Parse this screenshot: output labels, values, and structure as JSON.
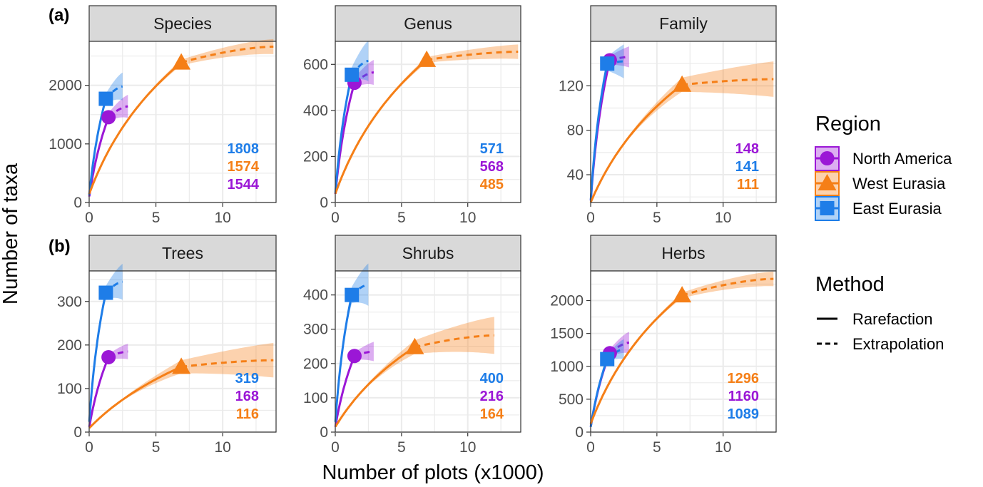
{
  "colors": {
    "north_america": "#9B17D6",
    "west_eurasia": "#F57F17",
    "east_eurasia": "#1E7DE8",
    "strip_bg": "#d9d9d9",
    "grid": "#ebebeb",
    "tick": "#4d4d4d"
  },
  "axes": {
    "x_title": "Number of plots (x1000)",
    "y_title": "Number of taxa"
  },
  "rows": [
    {
      "tag": "(a)"
    },
    {
      "tag": "(b)"
    }
  ],
  "legend": {
    "region_title": "Region",
    "regions": [
      {
        "key": "north_america",
        "label": "North America",
        "marker": "circle"
      },
      {
        "key": "west_eurasia",
        "label": "West Eurasia",
        "marker": "triangle"
      },
      {
        "key": "east_eurasia",
        "label": "East Eurasia",
        "marker": "square"
      }
    ],
    "method_title": "Method",
    "methods": [
      {
        "key": "rarefaction",
        "label": "Rarefaction",
        "line": "solid"
      },
      {
        "key": "extrapolation",
        "label": "Extrapolation",
        "line": "dashed"
      }
    ]
  },
  "chart_data": [
    {
      "type": "line",
      "title": "Species",
      "xlabel": "Number of plots (x1000)",
      "ylabel": "Number of taxa",
      "xlim": [
        0,
        14
      ],
      "ylim": [
        0,
        2750
      ],
      "xticks": [
        0,
        5,
        10
      ],
      "yticks": [
        0,
        1000,
        2000
      ],
      "series": [
        {
          "region": "north_america",
          "observed": [
            1.45,
            1455
          ],
          "end": [
            2.9,
            1640
          ],
          "ci": 0.05
        },
        {
          "region": "west_eurasia",
          "observed": [
            6.9,
            2390
          ],
          "end": [
            13.8,
            2660
          ],
          "ci": 0.02
        },
        {
          "region": "east_eurasia",
          "observed": [
            1.25,
            1770
          ],
          "end": [
            2.5,
            1980
          ],
          "ci": 0.05
        }
      ],
      "counts": [
        {
          "value": "1808",
          "region": "east_eurasia"
        },
        {
          "value": "1574",
          "region": "west_eurasia"
        },
        {
          "value": "1544",
          "region": "north_america"
        }
      ]
    },
    {
      "type": "line",
      "title": "Genus",
      "xlabel": "Number of plots (x1000)",
      "ylabel": "Number of taxa",
      "xlim": [
        0,
        14
      ],
      "ylim": [
        0,
        700
      ],
      "xticks": [
        0,
        5,
        10
      ],
      "yticks": [
        0,
        200,
        400,
        600
      ],
      "series": [
        {
          "region": "north_america",
          "observed": [
            1.45,
            520
          ],
          "end": [
            2.9,
            565
          ],
          "ci": 0.04
        },
        {
          "region": "west_eurasia",
          "observed": [
            6.9,
            620
          ],
          "end": [
            13.8,
            655
          ],
          "ci": 0.02
        },
        {
          "region": "east_eurasia",
          "observed": [
            1.25,
            555
          ],
          "end": [
            2.5,
            615
          ],
          "ci": 0.06
        }
      ],
      "counts": [
        {
          "value": "571",
          "region": "east_eurasia"
        },
        {
          "value": "568",
          "region": "north_america"
        },
        {
          "value": "485",
          "region": "west_eurasia"
        }
      ]
    },
    {
      "type": "line",
      "title": "Family",
      "xlabel": "Number of plots (x1000)",
      "ylabel": "Number of taxa",
      "xlim": [
        0,
        14
      ],
      "ylim": [
        15,
        160
      ],
      "xticks": [
        0,
        5,
        10
      ],
      "yticks": [
        40,
        80,
        120
      ],
      "series": [
        {
          "region": "north_america",
          "observed": [
            1.45,
            143
          ],
          "end": [
            2.9,
            146
          ],
          "ci": 0.03
        },
        {
          "region": "west_eurasia",
          "observed": [
            6.9,
            121
          ],
          "end": [
            13.8,
            126
          ],
          "ci": 0.06
        },
        {
          "region": "east_eurasia",
          "observed": [
            1.25,
            140
          ],
          "end": [
            2.5,
            142
          ],
          "ci": 0.05
        }
      ],
      "counts": [
        {
          "value": "148",
          "region": "north_america"
        },
        {
          "value": "141",
          "region": "east_eurasia"
        },
        {
          "value": "111",
          "region": "west_eurasia"
        }
      ]
    },
    {
      "type": "line",
      "title": "Trees",
      "xlabel": "Number of plots (x1000)",
      "ylabel": "Number of taxa",
      "xlim": [
        0,
        14
      ],
      "ylim": [
        0,
        370
      ],
      "xticks": [
        0,
        5,
        10
      ],
      "yticks": [
        0,
        100,
        200,
        300
      ],
      "series": [
        {
          "region": "north_america",
          "observed": [
            1.45,
            172
          ],
          "end": [
            2.9,
            185
          ],
          "ci": 0.04
        },
        {
          "region": "west_eurasia",
          "observed": [
            6.9,
            150
          ],
          "end": [
            13.8,
            165
          ],
          "ci": 0.1
        },
        {
          "region": "east_eurasia",
          "observed": [
            1.25,
            320
          ],
          "end": [
            2.5,
            345
          ],
          "ci": 0.05
        }
      ],
      "counts": [
        {
          "value": "319",
          "region": "east_eurasia"
        },
        {
          "value": "168",
          "region": "north_america"
        },
        {
          "value": "116",
          "region": "west_eurasia"
        }
      ]
    },
    {
      "type": "line",
      "title": "Shrubs",
      "xlabel": "Number of plots (x1000)",
      "ylabel": "Number of taxa",
      "xlim": [
        0,
        14
      ],
      "ylim": [
        0,
        470
      ],
      "xticks": [
        0,
        5,
        10
      ],
      "yticks": [
        0,
        100,
        200,
        300,
        400
      ],
      "series": [
        {
          "region": "north_america",
          "observed": [
            1.45,
            222
          ],
          "end": [
            2.9,
            235
          ],
          "ci": 0.05
        },
        {
          "region": "west_eurasia",
          "observed": [
            6.0,
            248
          ],
          "end": [
            12.0,
            282
          ],
          "ci": 0.08
        },
        {
          "region": "east_eurasia",
          "observed": [
            1.25,
            400
          ],
          "end": [
            2.5,
            430
          ],
          "ci": 0.06
        }
      ],
      "counts": [
        {
          "value": "400",
          "region": "east_eurasia"
        },
        {
          "value": "216",
          "region": "north_america"
        },
        {
          "value": "164",
          "region": "west_eurasia"
        }
      ]
    },
    {
      "type": "line",
      "title": "Herbs",
      "xlabel": "Number of plots (x1000)",
      "ylabel": "Number of taxa",
      "xlim": [
        0,
        14
      ],
      "ylim": [
        0,
        2450
      ],
      "xticks": [
        0,
        5,
        10
      ],
      "yticks": [
        0,
        500,
        1000,
        1500,
        2000
      ],
      "series": [
        {
          "region": "north_america",
          "observed": [
            1.45,
            1200
          ],
          "end": [
            2.9,
            1360
          ],
          "ci": 0.05
        },
        {
          "region": "west_eurasia",
          "observed": [
            6.9,
            2080
          ],
          "end": [
            13.8,
            2330
          ],
          "ci": 0.02
        },
        {
          "region": "east_eurasia",
          "observed": [
            1.25,
            1110
          ],
          "end": [
            2.5,
            1260
          ],
          "ci": 0.05
        }
      ],
      "counts": [
        {
          "value": "1296",
          "region": "west_eurasia"
        },
        {
          "value": "1160",
          "region": "north_america"
        },
        {
          "value": "1089",
          "region": "east_eurasia"
        }
      ]
    }
  ]
}
